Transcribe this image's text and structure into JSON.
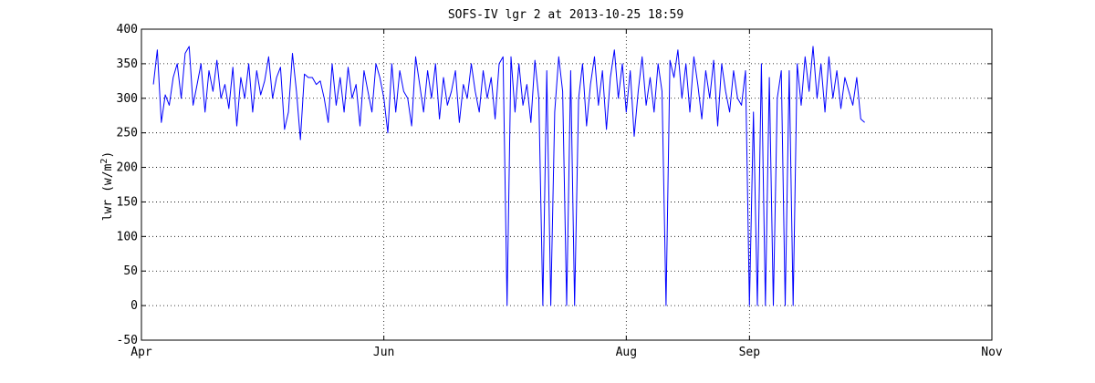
{
  "chart_data": {
    "type": "line",
    "title": "SOFS-IV lgr 2 at 2013-10-25 18:59",
    "ylabel": "lwr (w/m^2)",
    "ylabel_parts": {
      "base": "lwr (w/m",
      "sup": "2",
      "close": ")"
    },
    "xlabel": "",
    "xlim": [
      "2013-04-01",
      "2013-11-01"
    ],
    "ylim": [
      -50,
      400
    ],
    "grid": "dotted",
    "line_color": "#0000ff",
    "x_ticks": [
      {
        "label": "Apr",
        "date": "2013-04-01"
      },
      {
        "label": "Jun",
        "date": "2013-06-01"
      },
      {
        "label": "Aug",
        "date": "2013-08-01"
      },
      {
        "label": "Sep",
        "date": "2013-09-01"
      },
      {
        "label": "Nov",
        "date": "2013-11-01"
      }
    ],
    "y_ticks": [
      -50,
      0,
      50,
      100,
      150,
      200,
      250,
      300,
      350,
      400
    ],
    "series": [
      {
        "x": [
          "2013-04-04",
          "2013-04-05",
          "2013-04-06",
          "2013-04-07",
          "2013-04-08",
          "2013-04-09",
          "2013-04-10",
          "2013-04-11",
          "2013-04-12",
          "2013-04-13",
          "2013-04-14",
          "2013-04-15",
          "2013-04-16",
          "2013-04-17",
          "2013-04-18",
          "2013-04-19",
          "2013-04-20",
          "2013-04-21",
          "2013-04-22",
          "2013-04-23",
          "2013-04-24",
          "2013-04-25",
          "2013-04-26",
          "2013-04-27",
          "2013-04-28",
          "2013-04-29",
          "2013-04-30",
          "2013-05-01",
          "2013-05-02",
          "2013-05-03",
          "2013-05-04",
          "2013-05-05",
          "2013-05-06",
          "2013-05-07",
          "2013-05-08",
          "2013-05-09",
          "2013-05-10",
          "2013-05-11",
          "2013-05-12",
          "2013-05-13",
          "2013-05-14",
          "2013-05-15",
          "2013-05-16",
          "2013-05-17",
          "2013-05-18",
          "2013-05-19",
          "2013-05-20",
          "2013-05-21",
          "2013-05-22",
          "2013-05-23",
          "2013-05-24",
          "2013-05-25",
          "2013-05-26",
          "2013-05-27",
          "2013-05-28",
          "2013-05-29",
          "2013-05-30",
          "2013-05-31",
          "2013-06-01",
          "2013-06-02",
          "2013-06-03",
          "2013-06-04",
          "2013-06-05",
          "2013-06-06",
          "2013-06-07",
          "2013-06-08",
          "2013-06-09",
          "2013-06-10",
          "2013-06-11",
          "2013-06-12",
          "2013-06-13",
          "2013-06-14",
          "2013-06-15",
          "2013-06-16",
          "2013-06-17",
          "2013-06-18",
          "2013-06-19",
          "2013-06-20",
          "2013-06-21",
          "2013-06-22",
          "2013-06-23",
          "2013-06-24",
          "2013-06-25",
          "2013-06-26",
          "2013-06-27",
          "2013-06-28",
          "2013-06-29",
          "2013-06-30",
          "2013-07-01",
          "2013-07-02",
          "2013-07-03",
          "2013-07-04",
          "2013-07-05",
          "2013-07-06",
          "2013-07-07",
          "2013-07-08",
          "2013-07-09",
          "2013-07-10",
          "2013-07-11",
          "2013-07-12",
          "2013-07-13",
          "2013-07-14",
          "2013-07-15",
          "2013-07-16",
          "2013-07-17",
          "2013-07-18",
          "2013-07-19",
          "2013-07-20",
          "2013-07-21",
          "2013-07-22",
          "2013-07-23",
          "2013-07-24",
          "2013-07-25",
          "2013-07-26",
          "2013-07-27",
          "2013-07-28",
          "2013-07-29",
          "2013-07-30",
          "2013-07-31",
          "2013-08-01",
          "2013-08-02",
          "2013-08-03",
          "2013-08-04",
          "2013-08-05",
          "2013-08-06",
          "2013-08-07",
          "2013-08-08",
          "2013-08-09",
          "2013-08-10",
          "2013-08-11",
          "2013-08-12",
          "2013-08-13",
          "2013-08-14",
          "2013-08-15",
          "2013-08-16",
          "2013-08-17",
          "2013-08-18",
          "2013-08-19",
          "2013-08-20",
          "2013-08-21",
          "2013-08-22",
          "2013-08-23",
          "2013-08-24",
          "2013-08-25",
          "2013-08-26",
          "2013-08-27",
          "2013-08-28",
          "2013-08-29",
          "2013-08-30",
          "2013-08-31",
          "2013-09-01",
          "2013-09-02",
          "2013-09-03",
          "2013-09-04",
          "2013-09-05",
          "2013-09-06",
          "2013-09-07",
          "2013-09-08",
          "2013-09-09",
          "2013-09-10",
          "2013-09-11",
          "2013-09-12",
          "2013-09-13",
          "2013-09-14",
          "2013-09-15",
          "2013-09-16",
          "2013-09-17",
          "2013-09-18",
          "2013-09-19",
          "2013-09-20",
          "2013-09-21",
          "2013-09-22",
          "2013-09-23",
          "2013-09-24",
          "2013-09-25",
          "2013-09-26",
          "2013-09-27",
          "2013-09-28",
          "2013-09-29",
          "2013-09-30"
        ],
        "y": [
          320,
          370,
          265,
          305,
          290,
          330,
          350,
          300,
          365,
          375,
          290,
          320,
          350,
          280,
          340,
          310,
          355,
          300,
          320,
          285,
          345,
          260,
          330,
          300,
          350,
          280,
          340,
          305,
          325,
          360,
          300,
          330,
          345,
          255,
          280,
          365,
          310,
          240,
          335,
          330,
          330,
          320,
          325,
          300,
          265,
          350,
          290,
          330,
          280,
          345,
          300,
          320,
          260,
          340,
          310,
          280,
          350,
          330,
          300,
          250,
          350,
          280,
          340,
          310,
          300,
          260,
          360,
          320,
          280,
          340,
          300,
          350,
          270,
          330,
          290,
          310,
          340,
          265,
          320,
          300,
          350,
          310,
          280,
          340,
          300,
          330,
          270,
          350,
          360,
          0,
          360,
          280,
          350,
          290,
          320,
          265,
          355,
          300,
          0,
          340,
          0,
          280,
          360,
          310,
          0,
          340,
          0,
          300,
          350,
          260,
          320,
          360,
          290,
          340,
          255,
          330,
          370,
          300,
          350,
          280,
          340,
          245,
          310,
          360,
          290,
          330,
          280,
          350,
          310,
          0,
          355,
          330,
          370,
          300,
          350,
          280,
          360,
          320,
          270,
          340,
          300,
          355,
          260,
          350,
          310,
          280,
          340,
          300,
          290,
          340,
          0,
          280,
          0,
          350,
          0,
          330,
          0,
          300,
          340,
          0,
          340,
          0,
          350,
          290,
          360,
          310,
          375,
          300,
          350,
          280,
          360,
          300,
          340,
          285,
          330,
          310,
          290,
          330,
          270,
          265
        ]
      }
    ]
  }
}
